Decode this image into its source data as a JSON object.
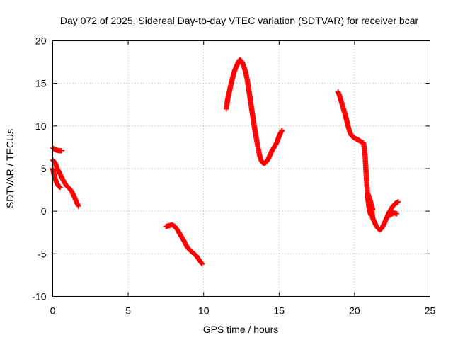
{
  "chart_data": {
    "type": "scatter",
    "title": "Day 072 of 2025, Sidereal Day-to-day VTEC variation (SDTVAR) for receiver bcar",
    "xlabel": "GPS time / hours",
    "ylabel": "SDTVAR / TECUs",
    "xlim": [
      0,
      25
    ],
    "ylim": [
      -10,
      20
    ],
    "xticks": [
      "0",
      "5",
      "10",
      "15",
      "20",
      "25"
    ],
    "yticks": [
      "-10",
      "-5",
      "0",
      "5",
      "10",
      "15",
      "20"
    ],
    "grid": true,
    "marker": "plus",
    "color": "#ff0000",
    "segments": [
      {
        "x": [
          0.0,
          0.2,
          0.4,
          0.6
        ],
        "y": [
          7.4,
          7.2,
          7.1,
          7.1
        ]
      },
      {
        "x": [
          0.0,
          0.1,
          0.2,
          0.3,
          0.4,
          0.5
        ],
        "y": [
          5.0,
          4.2,
          3.6,
          3.2,
          2.9,
          2.8
        ]
      },
      {
        "x": [
          0.0,
          0.15,
          0.3,
          0.5,
          0.7,
          0.9,
          1.1,
          1.3,
          1.5,
          1.7
        ],
        "y": [
          6.0,
          5.7,
          5.0,
          4.3,
          3.6,
          3.0,
          2.7,
          2.2,
          1.4,
          0.6
        ]
      },
      {
        "x": [
          7.5,
          7.7,
          7.9,
          8.1,
          8.3,
          8.5,
          8.7,
          8.9,
          9.1,
          9.3,
          9.5,
          9.7,
          9.9
        ],
        "y": [
          -1.8,
          -1.7,
          -1.6,
          -1.8,
          -2.3,
          -2.9,
          -3.5,
          -4.2,
          -4.6,
          -4.9,
          -5.2,
          -5.7,
          -6.2
        ]
      },
      {
        "x": [
          11.5,
          11.6,
          11.7,
          11.8,
          11.9,
          12.0,
          12.1,
          12.2,
          12.3,
          12.4,
          12.5,
          12.6,
          12.7,
          12.8,
          12.9,
          13.0,
          13.1,
          13.2,
          13.3,
          13.4,
          13.5,
          13.6,
          13.7,
          13.8,
          13.9,
          14.0,
          14.1,
          14.2,
          14.3,
          14.4,
          14.5,
          14.6,
          14.7,
          14.8,
          14.9,
          15.0,
          15.1,
          15.2
        ],
        "y": [
          12.0,
          13.2,
          14.0,
          14.8,
          15.5,
          16.2,
          16.7,
          17.1,
          17.5,
          17.8,
          17.6,
          17.3,
          16.8,
          16.2,
          15.3,
          14.2,
          13.0,
          11.8,
          10.6,
          9.5,
          8.5,
          7.5,
          6.6,
          6.0,
          5.7,
          5.6,
          5.7,
          5.9,
          6.2,
          6.6,
          7.0,
          7.3,
          7.6,
          7.9,
          8.3,
          8.8,
          9.2,
          9.5
        ]
      },
      {
        "x": [
          18.9,
          19.0,
          19.1,
          19.2,
          19.3,
          19.4,
          19.5,
          19.6,
          19.7,
          19.8,
          19.9,
          20.0,
          20.2,
          20.4,
          20.6,
          20.7,
          20.75,
          20.8,
          20.85,
          20.9,
          20.95,
          21.0,
          21.05,
          21.1,
          21.15,
          21.2,
          21.3,
          21.4,
          21.5,
          21.6,
          21.7,
          21.8,
          21.9,
          22.0,
          22.1,
          22.2,
          22.3,
          22.4,
          22.5,
          22.6,
          22.7,
          22.8,
          22.9
        ],
        "y": [
          14.0,
          13.6,
          13.0,
          12.4,
          11.8,
          11.2,
          10.5,
          9.8,
          9.2,
          8.9,
          8.7,
          8.6,
          8.4,
          8.2,
          8.0,
          6.5,
          5.0,
          3.5,
          2.2,
          1.2,
          0.5,
          0.0,
          -0.3,
          -0.5,
          0.0,
          -0.8,
          -1.2,
          -1.6,
          -1.9,
          -2.1,
          -2.2,
          -2.0,
          -1.7,
          -1.3,
          -0.9,
          -0.5,
          -0.1,
          0.2,
          0.5,
          0.7,
          0.9,
          1.0,
          1.1
        ]
      },
      {
        "x": [
          20.9,
          21.0,
          21.1,
          21.2
        ],
        "y": [
          2.0,
          1.5,
          0.8,
          0.2
        ]
      },
      {
        "x": [
          22.2,
          22.4,
          22.6,
          22.8
        ],
        "y": [
          -0.6,
          -0.4,
          -0.2,
          -0.3
        ]
      }
    ]
  }
}
